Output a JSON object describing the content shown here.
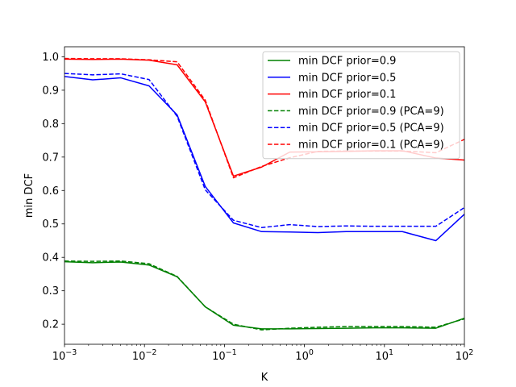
{
  "chart_data": {
    "type": "line",
    "xlabel": "K",
    "ylabel": "min DCF",
    "xscale": "log",
    "xlim": [
      0.001,
      100
    ],
    "ylim": [
      0.14,
      1.03
    ],
    "x_ticks": [
      {
        "value": 0.001,
        "base": "10",
        "exp": "−3"
      },
      {
        "value": 0.01,
        "base": "10",
        "exp": "−2"
      },
      {
        "value": 0.1,
        "base": "10",
        "exp": "−1"
      },
      {
        "value": 1,
        "base": "10",
        "exp": "0"
      },
      {
        "value": 10,
        "base": "10",
        "exp": "1"
      },
      {
        "value": 100,
        "base": "10",
        "exp": "2"
      }
    ],
    "y_ticks": [
      0.2,
      0.3,
      0.4,
      0.5,
      0.6,
      0.7,
      0.8,
      0.9,
      1.0
    ],
    "y_tick_labels": [
      "0.2",
      "0.3",
      "0.4",
      "0.5",
      "0.6",
      "0.7",
      "0.8",
      "0.9",
      "1.0"
    ],
    "grid": false,
    "legend_position": "top-right",
    "series": [
      {
        "name": "min DCF prior=0.9",
        "color": "#008000",
        "dash": "solid",
        "x": [
          0.001,
          0.00225,
          0.00506,
          0.0114,
          0.0256,
          0.0576,
          0.1295,
          0.2914,
          0.6555,
          1.4747,
          3.3177,
          7.4643,
          16.793,
          44,
          100
        ],
        "y": [
          0.387,
          0.384,
          0.386,
          0.377,
          0.342,
          0.252,
          0.197,
          0.186,
          0.186,
          0.187,
          0.188,
          0.189,
          0.189,
          0.188,
          0.218
        ]
      },
      {
        "name": "min DCF prior=0.5",
        "color": "#0000ff",
        "dash": "solid",
        "x": [
          0.001,
          0.00225,
          0.00506,
          0.0114,
          0.0256,
          0.0576,
          0.1295,
          0.2914,
          0.6555,
          1.4747,
          3.3177,
          7.4643,
          16.793,
          44,
          100
        ],
        "y": [
          0.941,
          0.931,
          0.937,
          0.913,
          0.826,
          0.612,
          0.503,
          0.477,
          0.476,
          0.474,
          0.477,
          0.477,
          0.477,
          0.45,
          0.529
        ]
      },
      {
        "name": "min DCF prior=0.1",
        "color": "#ff0000",
        "dash": "solid",
        "x": [
          0.001,
          0.00225,
          0.00506,
          0.0114,
          0.0256,
          0.0576,
          0.1295,
          0.2914,
          0.6555,
          1.4747,
          3.3177,
          7.4643,
          16.793,
          44,
          100
        ],
        "y": [
          0.993,
          0.992,
          0.993,
          0.99,
          0.976,
          0.865,
          0.643,
          0.67,
          0.715,
          0.716,
          0.717,
          0.719,
          0.719,
          0.697,
          0.691
        ]
      },
      {
        "name": "min DCF prior=0.9 (PCA=9)",
        "color": "#008000",
        "dash": "dashed",
        "x": [
          0.001,
          0.00225,
          0.00506,
          0.0114,
          0.0256,
          0.0576,
          0.1295,
          0.2914,
          0.6555,
          1.4747,
          3.3177,
          7.4643,
          16.793,
          44,
          100
        ],
        "y": [
          0.389,
          0.388,
          0.389,
          0.381,
          0.343,
          0.252,
          0.2,
          0.183,
          0.188,
          0.191,
          0.193,
          0.193,
          0.193,
          0.191,
          0.216
        ]
      },
      {
        "name": "min DCF prior=0.5 (PCA=9)",
        "color": "#0000ff",
        "dash": "dashed",
        "x": [
          0.001,
          0.00225,
          0.00506,
          0.0114,
          0.0256,
          0.0576,
          0.1295,
          0.2914,
          0.6555,
          1.4747,
          3.3177,
          7.4643,
          16.793,
          44,
          100
        ],
        "y": [
          0.95,
          0.946,
          0.949,
          0.932,
          0.822,
          0.602,
          0.511,
          0.489,
          0.498,
          0.492,
          0.494,
          0.493,
          0.493,
          0.493,
          0.549
        ]
      },
      {
        "name": "min DCF prior=0.1 (PCA=9)",
        "color": "#ff0000",
        "dash": "dashed",
        "x": [
          0.001,
          0.00225,
          0.00506,
          0.0114,
          0.0256,
          0.0576,
          0.1295,
          0.2914,
          0.6555,
          1.4747,
          3.3177,
          7.4643,
          16.793,
          44,
          100
        ],
        "y": [
          0.995,
          0.994,
          0.994,
          0.991,
          0.985,
          0.87,
          0.638,
          0.672,
          0.698,
          0.717,
          0.718,
          0.718,
          0.718,
          0.713,
          0.753
        ]
      }
    ]
  }
}
